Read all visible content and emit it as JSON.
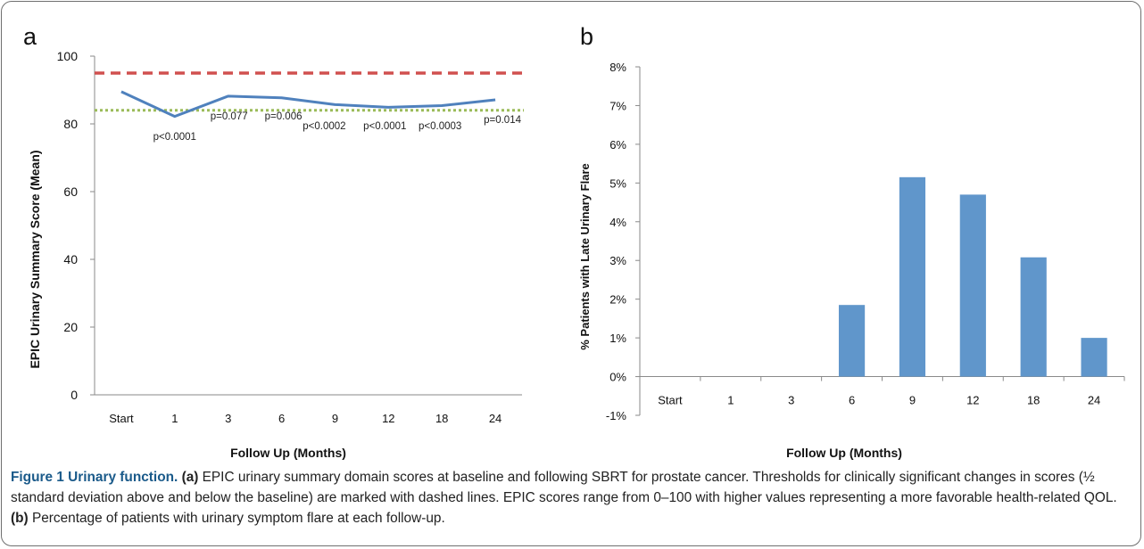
{
  "panel_labels": {
    "a": "a",
    "b": "b"
  },
  "caption": {
    "figure_label": "Figure 1 Urinary function.",
    "part_a_ref": "(a)",
    "part_a_text": "EPIC urinary summary domain scores at baseline and following SBRT for prostate cancer. Thresholds for clinically significant changes in scores (½ standard deviation above and below the baseline) are marked with dashed lines. EPIC scores range from 0–100 with higher values representing a more favorable health-related QOL.",
    "part_b_ref": "(b)",
    "part_b_text": "Percentage of patients with urinary symptom flare at each follow-up."
  },
  "chart_data": [
    {
      "type": "line",
      "categories": [
        "Start",
        "1",
        "3",
        "6",
        "9",
        "12",
        "18",
        "24"
      ],
      "series": [
        {
          "values": [
            89.5,
            82.2,
            88.2,
            87.7,
            85.7,
            84.9,
            85.4,
            87.1
          ],
          "color": "#4f81bd"
        }
      ],
      "thresholds": [
        {
          "value": 95,
          "style": "dashed",
          "color": "#d0504f"
        },
        {
          "value": 84,
          "style": "dotted",
          "color": "#9bbb59"
        }
      ],
      "annotations": [
        "p<0.0001",
        "p=0.077",
        "p=0.006",
        "p<0.0002",
        "p<0.0001",
        "p<0.0003",
        "p=0.014"
      ],
      "xlabel": "Follow Up (Months)",
      "ylabel": "EPIC Urinary Summary Score (Mean)",
      "ylim": [
        0,
        100
      ],
      "yticks": [
        "0",
        "20",
        "40",
        "60",
        "80",
        "100"
      ],
      "grid": false
    },
    {
      "type": "bar",
      "categories": [
        "Start",
        "1",
        "3",
        "6",
        "9",
        "12",
        "18",
        "24"
      ],
      "values": [
        0,
        0,
        0,
        1.85,
        5.15,
        4.7,
        3.08,
        1.0
      ],
      "color": "#6096cb",
      "xlabel": "Follow Up (Months)",
      "ylabel": "% Patients with Late Urinary Flare",
      "ylim": [
        -1,
        8
      ],
      "yticks": [
        "-1%",
        "0%",
        "1%",
        "2%",
        "3%",
        "4%",
        "5%",
        "6%",
        "7%",
        "8%"
      ],
      "grid": false
    }
  ]
}
